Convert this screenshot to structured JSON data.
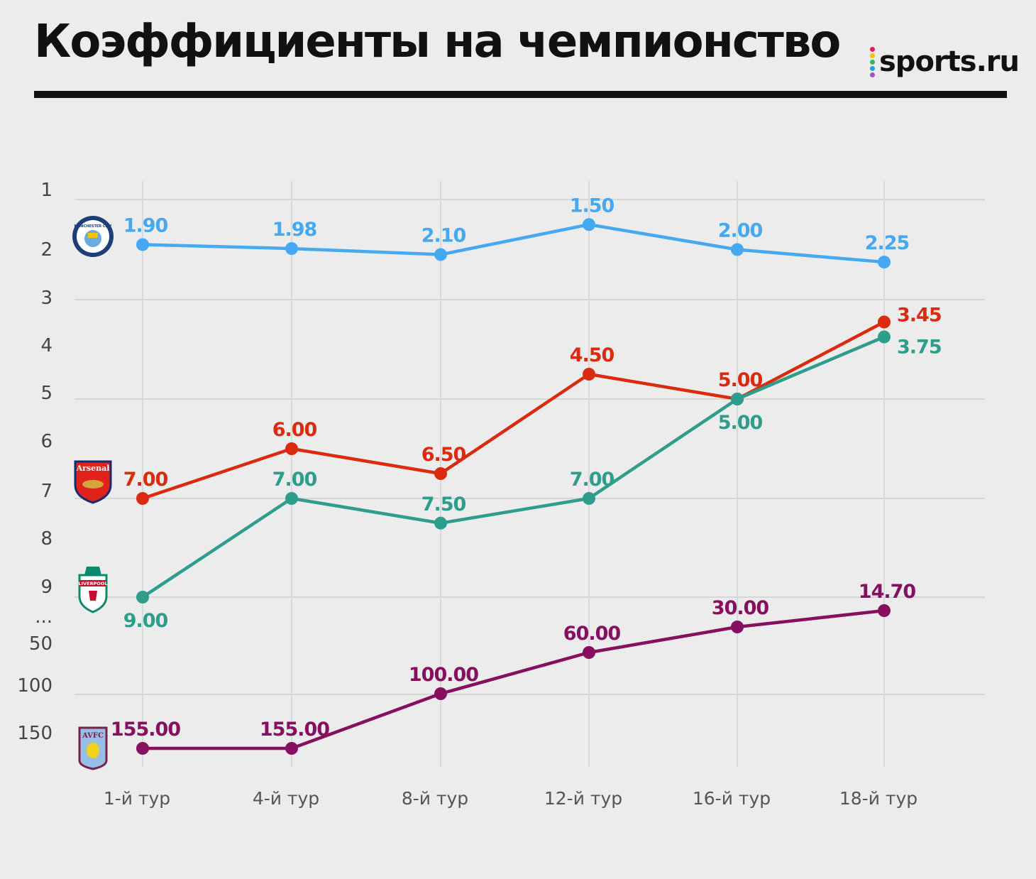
{
  "header": {
    "title": "Коэффициенты на чемпионство",
    "logo": "sports.ru"
  },
  "chart_data": {
    "type": "line",
    "title": "Коэффициенты на чемпионство",
    "xlabel": "",
    "ylabel": "",
    "categories": [
      "1-й тур",
      "4-й тур",
      "8-й тур",
      "12-й тур",
      "16-й тур",
      "18-й тур"
    ],
    "y_ticks": [
      "1",
      "2",
      "3",
      "4",
      "5",
      "6",
      "7",
      "8",
      "9",
      "...",
      "50",
      "100",
      "150"
    ],
    "y_axis": "inverted, broken between 9 and 50",
    "grid": true,
    "series": [
      {
        "name": "Manchester City",
        "crest_text": "MANCHESTER CITY",
        "color": "#45a9f2",
        "values": [
          1.9,
          1.98,
          2.1,
          1.5,
          2.0,
          2.25
        ],
        "labels": [
          "1.90",
          "1.98",
          "2.10",
          "1.50",
          "2.00",
          "2.25"
        ],
        "label_pos": [
          "above",
          "above",
          "above",
          "above",
          "above",
          "above"
        ]
      },
      {
        "name": "Arsenal",
        "crest_text": "Arsenal",
        "color": "#dc2a10",
        "values": [
          7.0,
          6.0,
          6.5,
          4.5,
          5.0,
          3.45
        ],
        "labels": [
          "7.00",
          "6.00",
          "6.50",
          "4.50",
          "5.00",
          "3.45"
        ],
        "label_pos": [
          "above",
          "above",
          "above",
          "above",
          "above",
          "right"
        ]
      },
      {
        "name": "Liverpool",
        "crest_text": "LIVERPOOL",
        "color": "#2e9d8c",
        "values": [
          9.0,
          7.0,
          7.5,
          7.0,
          5.0,
          3.75
        ],
        "labels": [
          "9.00",
          "7.00",
          "7.50",
          "7.00",
          "5.00",
          "3.75"
        ],
        "label_pos": [
          "below",
          "above",
          "above",
          "above",
          "below",
          "right-below"
        ]
      },
      {
        "name": "Aston Villa",
        "crest_text": "AVFC",
        "color": "#860f60",
        "values": [
          155.0,
          155.0,
          100.0,
          60.0,
          30.0,
          14.7
        ],
        "labels": [
          "155.00",
          "155.00",
          "100.00",
          "60.00",
          "30.00",
          "14.70"
        ],
        "label_pos": [
          "above",
          "above",
          "above",
          "above",
          "above",
          "above"
        ]
      }
    ]
  }
}
